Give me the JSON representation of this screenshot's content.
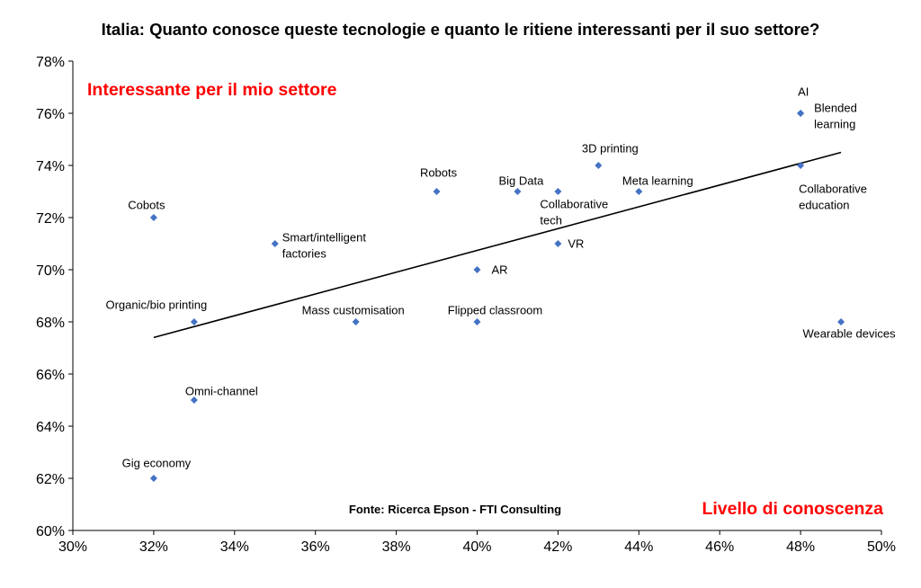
{
  "chart_data": {
    "type": "scatter",
    "title": "Italia: Quanto conosce queste tecnologie e quanto le ritiene interessanti per il suo settore?",
    "ylabel": "Interessante per il mio settore",
    "xlabel": "Livello di conoscenza",
    "source": "Fonte: Ricerca Epson - FTI Consulting",
    "xlim": [
      30,
      50
    ],
    "ylim": [
      60,
      78
    ],
    "x_ticks": [
      "30%",
      "32%",
      "34%",
      "36%",
      "38%",
      "40%",
      "42%",
      "44%",
      "46%",
      "48%",
      "50%"
    ],
    "y_ticks": [
      "60%",
      "62%",
      "64%",
      "66%",
      "68%",
      "70%",
      "72%",
      "74%",
      "76%",
      "78%"
    ],
    "grid": false,
    "colors": {
      "points": "#4472C4",
      "trendline": "#000000",
      "axis_labels": "#FF0000"
    },
    "points": [
      {
        "label": "Cobots",
        "x": 32,
        "y": 72
      },
      {
        "label": "Gig economy",
        "x": 32,
        "y": 62
      },
      {
        "label": "Organic/bio printing",
        "x": 33,
        "y": 68
      },
      {
        "label": "Omni-channel",
        "x": 33,
        "y": 65
      },
      {
        "label": "Smart/intelligent factories",
        "x": 35,
        "y": 71
      },
      {
        "label": "Mass customisation",
        "x": 37,
        "y": 68
      },
      {
        "label": "Robots",
        "x": 39,
        "y": 73
      },
      {
        "label": "AR",
        "x": 40,
        "y": 70
      },
      {
        "label": "Flipped classroom",
        "x": 40,
        "y": 68
      },
      {
        "label": "Big Data",
        "x": 41,
        "y": 73
      },
      {
        "label": "Collaborative tech",
        "x": 42,
        "y": 73
      },
      {
        "label": "VR",
        "x": 42,
        "y": 71
      },
      {
        "label": "3D printing",
        "x": 43,
        "y": 74
      },
      {
        "label": "Meta learning",
        "x": 44,
        "y": 73
      },
      {
        "label": "AI",
        "x": 48,
        "y": 76
      },
      {
        "label": "Blended learning",
        "x": 48,
        "y": 76
      },
      {
        "label": "Collaborative education",
        "x": 48,
        "y": 74
      },
      {
        "label": "Wearable devices",
        "x": 49,
        "y": 68
      }
    ],
    "trendline": {
      "type": "linear",
      "from": {
        "x": 32,
        "y": 67.4
      },
      "to": {
        "x": 49,
        "y": 74.5
      }
    }
  }
}
